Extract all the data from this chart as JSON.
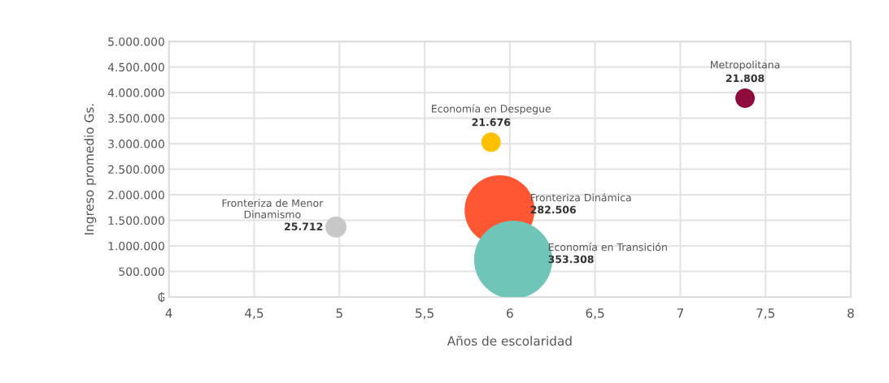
{
  "chart_data": {
    "type": "bubble",
    "xlabel": "Años de escolaridad",
    "ylabel": "Ingreso promedio Gs.",
    "xlim": [
      4,
      8
    ],
    "xticks": [
      4,
      {
        "value": 4.5,
        "label": "4,5"
      },
      5,
      {
        "value": 5.5,
        "label": "5,5"
      },
      6,
      {
        "value": 6.5,
        "label": "6,5"
      },
      7,
      {
        "value": 7.5,
        "label": "7,5"
      },
      8
    ],
    "ylim": [
      0,
      5000000
    ],
    "yticks": [
      {
        "value": 0,
        "label": "₲"
      },
      {
        "value": 500000,
        "label": "500.000"
      },
      {
        "value": 1000000,
        "label": "1.000.000"
      },
      {
        "value": 1500000,
        "label": "1.500.000"
      },
      {
        "value": 2000000,
        "label": "2.000.000"
      },
      {
        "value": 2500000,
        "label": "2.500.000"
      },
      {
        "value": 3000000,
        "label": "3.000.000"
      },
      {
        "value": 3500000,
        "label": "3.500.000"
      },
      {
        "value": 4000000,
        "label": "4.000.000"
      },
      {
        "value": 4500000,
        "label": "4.500.000"
      },
      {
        "value": 5000000,
        "label": "5.000.000"
      }
    ],
    "grid": true,
    "series": [
      {
        "name": "Metropolitana",
        "color": "#8e0b3c",
        "x": [
          7.38
        ],
        "values": [
          3890000
        ],
        "sizes": [
          21808
        ],
        "value_labels": [
          "21.808"
        ]
      },
      {
        "name": "Economía en Despegue",
        "color": "#ffc000",
        "x": [
          5.89
        ],
        "values": [
          3030000
        ],
        "sizes": [
          21676
        ],
        "value_labels": [
          "21.676"
        ]
      },
      {
        "name": "Fronteriza Dinámica",
        "color": "#ff5733",
        "x": [
          5.94
        ],
        "values": [
          1700000
        ],
        "sizes": [
          282506
        ],
        "value_labels": [
          "282.506"
        ]
      },
      {
        "name": "Economía en Transición",
        "color": "#6fc5b8",
        "x": [
          6.02
        ],
        "values": [
          730000
        ],
        "sizes": [
          353308
        ],
        "value_labels": [
          "353.308"
        ]
      },
      {
        "name": "Fronteriza de Menor\nDinamismo",
        "color": "#c8c8c8",
        "x": [
          4.98
        ],
        "values": [
          1370000
        ],
        "sizes": [
          25712
        ],
        "value_labels": [
          "25.712"
        ]
      }
    ]
  }
}
